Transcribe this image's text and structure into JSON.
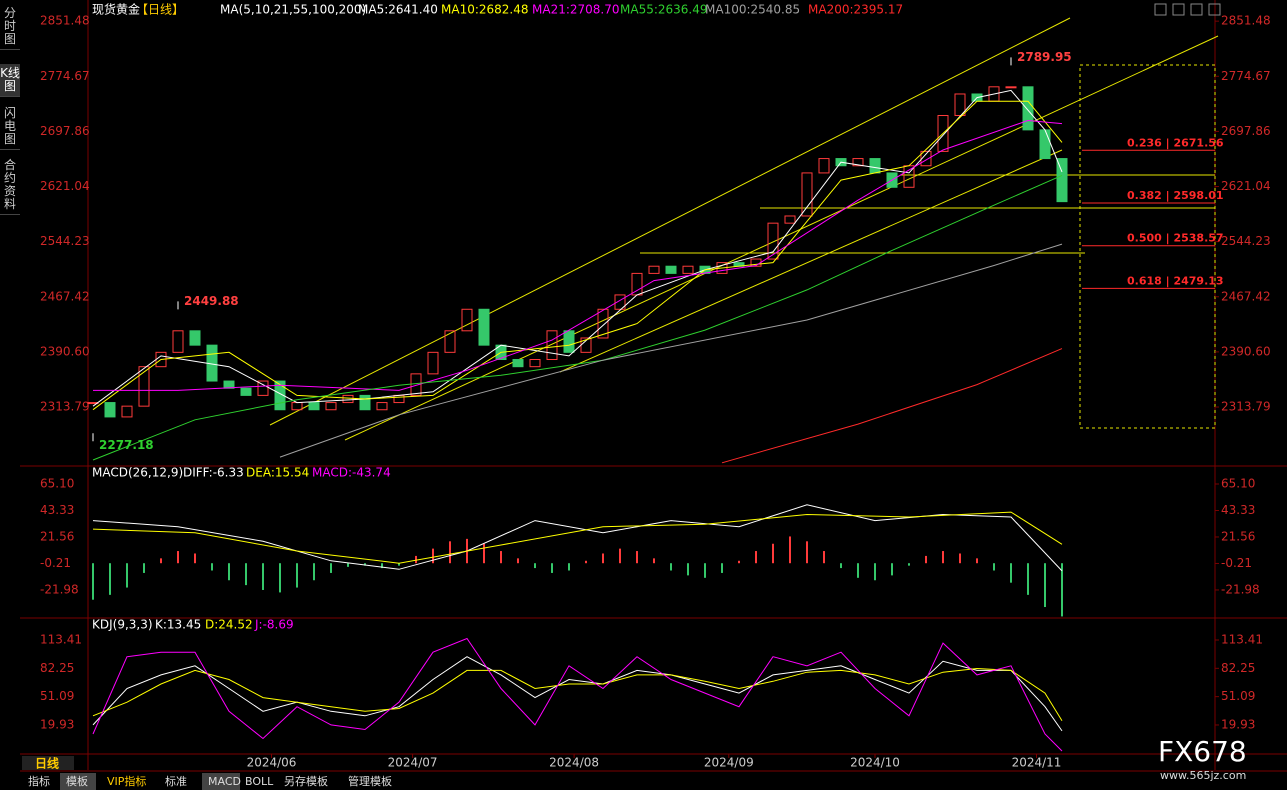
{
  "sidebar": [
    "分时图",
    "K线图",
    "闪电图",
    "合约资料"
  ],
  "header": {
    "symbol": "现货黄金",
    "period": "【日线】",
    "ma_params": "MA(5,10,21,55,100,200)"
  },
  "chart_data": [
    {
      "type": "candlestick",
      "xlim": [
        -0.5,
        57.5
      ],
      "ylim": [
        2233,
        2874
      ],
      "yticks": [
        2851.48,
        2774.67,
        2697.86,
        2621.04,
        2544.23,
        2467.42,
        {
          "value": 2390.6,
          "label": "2390.60"
        },
        2313.79
      ],
      "values": [
        2320,
        2300,
        2315,
        2370,
        2390,
        2420,
        2400,
        2350,
        2340,
        2330,
        2350,
        2310,
        2320,
        2310,
        2320,
        2330,
        2310,
        2320,
        2330,
        2360,
        2390,
        2420,
        2450,
        2400,
        2380,
        2370,
        2380,
        2420,
        2390,
        2410,
        2450,
        2470,
        2500,
        2510,
        2500,
        2510,
        2500,
        2515,
        2510,
        2520,
        2570,
        2580,
        2640,
        2660,
        2650,
        2660,
        2640,
        2620,
        2650,
        2670,
        2720,
        2750,
        2740,
        2760,
        2760,
        2700,
        2660,
        2600
      ],
      "up_color": "#ff3b3b",
      "down_color": "#35c86a",
      "series": [
        {
          "name": "MA5:2641.40",
          "color": "#ffffff",
          "x": [
            0,
            4,
            8,
            12,
            16,
            20,
            24,
            28,
            32,
            36,
            40,
            44,
            48,
            52,
            54,
            56,
            57
          ],
          "values": [
            2315,
            2385,
            2370,
            2320,
            2325,
            2335,
            2400,
            2385,
            2470,
            2505,
            2530,
            2655,
            2640,
            2745,
            2755,
            2700,
            2641.4
          ]
        },
        {
          "name": "MA10:2682.48",
          "color": "#ffff00",
          "x": [
            0,
            4,
            8,
            12,
            16,
            20,
            24,
            28,
            32,
            36,
            40,
            44,
            48,
            52,
            55,
            57
          ],
          "values": [
            2310,
            2380,
            2390,
            2330,
            2325,
            2330,
            2390,
            2400,
            2430,
            2505,
            2515,
            2630,
            2650,
            2740,
            2740,
            2682.48
          ]
        },
        {
          "name": "MA21:2708.70",
          "color": "#ff00ff",
          "x": [
            0,
            5,
            11,
            18,
            22,
            27,
            33,
            39,
            45,
            50,
            55,
            57
          ],
          "values": [
            2337,
            2337,
            2344,
            2337,
            2365,
            2407,
            2490,
            2511,
            2602,
            2672,
            2713,
            2708.7
          ]
        },
        {
          "name": "MA55:2636.49",
          "color": "#2fd02f",
          "x": [
            0,
            6,
            12,
            18,
            24,
            30,
            36,
            42,
            47,
            53,
            57
          ],
          "values": [
            2240,
            2296,
            2324,
            2344,
            2358,
            2379,
            2421,
            2477,
            2532,
            2595,
            2636.49
          ]
        },
        {
          "name": "MA100:2540.85",
          "color": "#a0a0a0",
          "x": [
            11,
            18,
            30,
            42,
            53,
            57
          ],
          "values": [
            2244,
            2303,
            2379,
            2435,
            2511,
            2540.85
          ]
        },
        {
          "name": "MA200:2395.17",
          "color": "#ff2a2a",
          "x": [
            37,
            45,
            52,
            57
          ],
          "values": [
            2236,
            2290,
            2345,
            2395.17
          ]
        }
      ],
      "annotations": [
        {
          "x": 54,
          "value": 2789.95
        },
        {
          "x": 5,
          "value": 2449.88
        },
        {
          "x": 0,
          "value": 2277.18
        }
      ],
      "fib_levels": [
        {
          "value": 2671.56,
          "label": "0.236 | 2671.56"
        },
        {
          "value": 2598.01,
          "label": "0.382 | 2598.01"
        },
        {
          "value": 2538.57,
          "label": "0.500 | 2538.57"
        },
        {
          "value": 2479.13,
          "label": "0.618 | 2479.13"
        }
      ],
      "fib_color": "#ff2a2a"
    },
    {
      "type": "macd",
      "title": "MACD(26,12,9)",
      "xlim": [
        -0.5,
        57.5
      ],
      "ylim": [
        -44.2,
        76.6
      ],
      "yticks": [
        {
          "value": 65.1,
          "label": "65.10"
        },
        43.33,
        21.56,
        -0.21,
        -21.98
      ],
      "values": [
        -30,
        -26,
        -20,
        -8,
        4,
        10,
        8,
        -6,
        -14,
        -18,
        -22,
        -24,
        -20,
        -14,
        -8,
        -3,
        -2,
        -4,
        -2,
        6,
        12,
        18,
        20,
        16,
        10,
        4,
        -4,
        -8,
        -6,
        2,
        8,
        12,
        10,
        4,
        -6,
        -10,
        -12,
        -8,
        2,
        10,
        16,
        22,
        18,
        10,
        -4,
        -12,
        -14,
        -10,
        -2,
        6,
        10,
        8,
        4,
        -6,
        -16,
        -26,
        -36,
        -43.74
      ],
      "up_color": "#ff3b3b",
      "down_color": "#35c86a",
      "series": [
        {
          "name": "DIFF:-6.33",
          "color": "#ffffff",
          "x": [
            0,
            5,
            10,
            14,
            18,
            22,
            26,
            30,
            34,
            38,
            42,
            46,
            50,
            54,
            57
          ],
          "values": [
            35,
            30,
            18,
            2,
            -5,
            10,
            35,
            25,
            35,
            30,
            48,
            35,
            40,
            38,
            -6.33
          ]
        },
        {
          "name": "DEA:15.54",
          "color": "#ffff00",
          "x": [
            0,
            6,
            12,
            18,
            24,
            30,
            36,
            42,
            48,
            54,
            57
          ],
          "values": [
            28,
            25,
            10,
            0,
            15,
            30,
            32,
            40,
            38,
            42,
            15.54
          ]
        }
      ],
      "value_name": "MACD:-43.74",
      "value_color": "#ff00ff"
    },
    {
      "type": "line",
      "title": "KDJ(9,3,3)",
      "xlim": [
        -0.5,
        57.5
      ],
      "ylim": [
        -18.6,
        133.2
      ],
      "yticks": [
        113.41,
        82.25,
        51.09,
        19.93
      ],
      "xticks": [
        {
          "value": 10.5,
          "label": "2024/06"
        },
        {
          "value": 18.8,
          "label": "2024/07"
        },
        {
          "value": 28.3,
          "label": "2024/08"
        },
        {
          "value": 37.4,
          "label": "2024/09"
        },
        {
          "value": 46,
          "label": "2024/10"
        },
        {
          "value": 55.5,
          "label": "2024/11"
        }
      ],
      "series": [
        {
          "name": "K:13.45",
          "color": "#ffffff",
          "x": [
            0,
            2,
            4,
            6,
            8,
            10,
            12,
            14,
            16,
            18,
            20,
            22,
            24,
            26,
            28,
            30,
            32,
            34,
            36,
            38,
            40,
            42,
            44,
            46,
            48,
            50,
            52,
            54,
            56,
            57
          ],
          "values": [
            20,
            60,
            75,
            85,
            60,
            35,
            45,
            35,
            30,
            40,
            70,
            95,
            75,
            50,
            70,
            65,
            80,
            75,
            65,
            55,
            75,
            80,
            85,
            70,
            55,
            90,
            80,
            80,
            40,
            13.45
          ]
        },
        {
          "name": "D:24.52",
          "color": "#ffff00",
          "x": [
            0,
            2,
            4,
            6,
            8,
            10,
            12,
            14,
            16,
            18,
            20,
            22,
            24,
            26,
            28,
            30,
            32,
            34,
            36,
            38,
            40,
            42,
            44,
            46,
            48,
            50,
            52,
            54,
            56,
            57
          ],
          "values": [
            30,
            45,
            65,
            80,
            70,
            50,
            45,
            40,
            35,
            38,
            55,
            80,
            80,
            60,
            65,
            65,
            75,
            75,
            68,
            60,
            68,
            78,
            80,
            75,
            65,
            78,
            82,
            80,
            55,
            24.52
          ]
        },
        {
          "name": "J:-8.69",
          "color": "#ff00ff",
          "x": [
            0,
            2,
            4,
            6,
            8,
            10,
            12,
            14,
            16,
            18,
            20,
            22,
            24,
            26,
            28,
            30,
            32,
            34,
            36,
            38,
            40,
            42,
            44,
            46,
            48,
            50,
            52,
            54,
            56,
            57
          ],
          "values": [
            10,
            95,
            100,
            100,
            35,
            5,
            40,
            20,
            15,
            45,
            100,
            115,
            60,
            20,
            85,
            60,
            95,
            70,
            55,
            40,
            95,
            85,
            100,
            60,
            30,
            110,
            75,
            85,
            10,
            -8.69
          ]
        }
      ]
    }
  ],
  "footer": {
    "period": "日线",
    "tabs": [
      "指标",
      "模板",
      "VIP指标",
      "标准",
      "MACD",
      "BOLL",
      "另存模板",
      "管理模板"
    ],
    "brand": "FX678",
    "site": "www.565jz.com"
  }
}
